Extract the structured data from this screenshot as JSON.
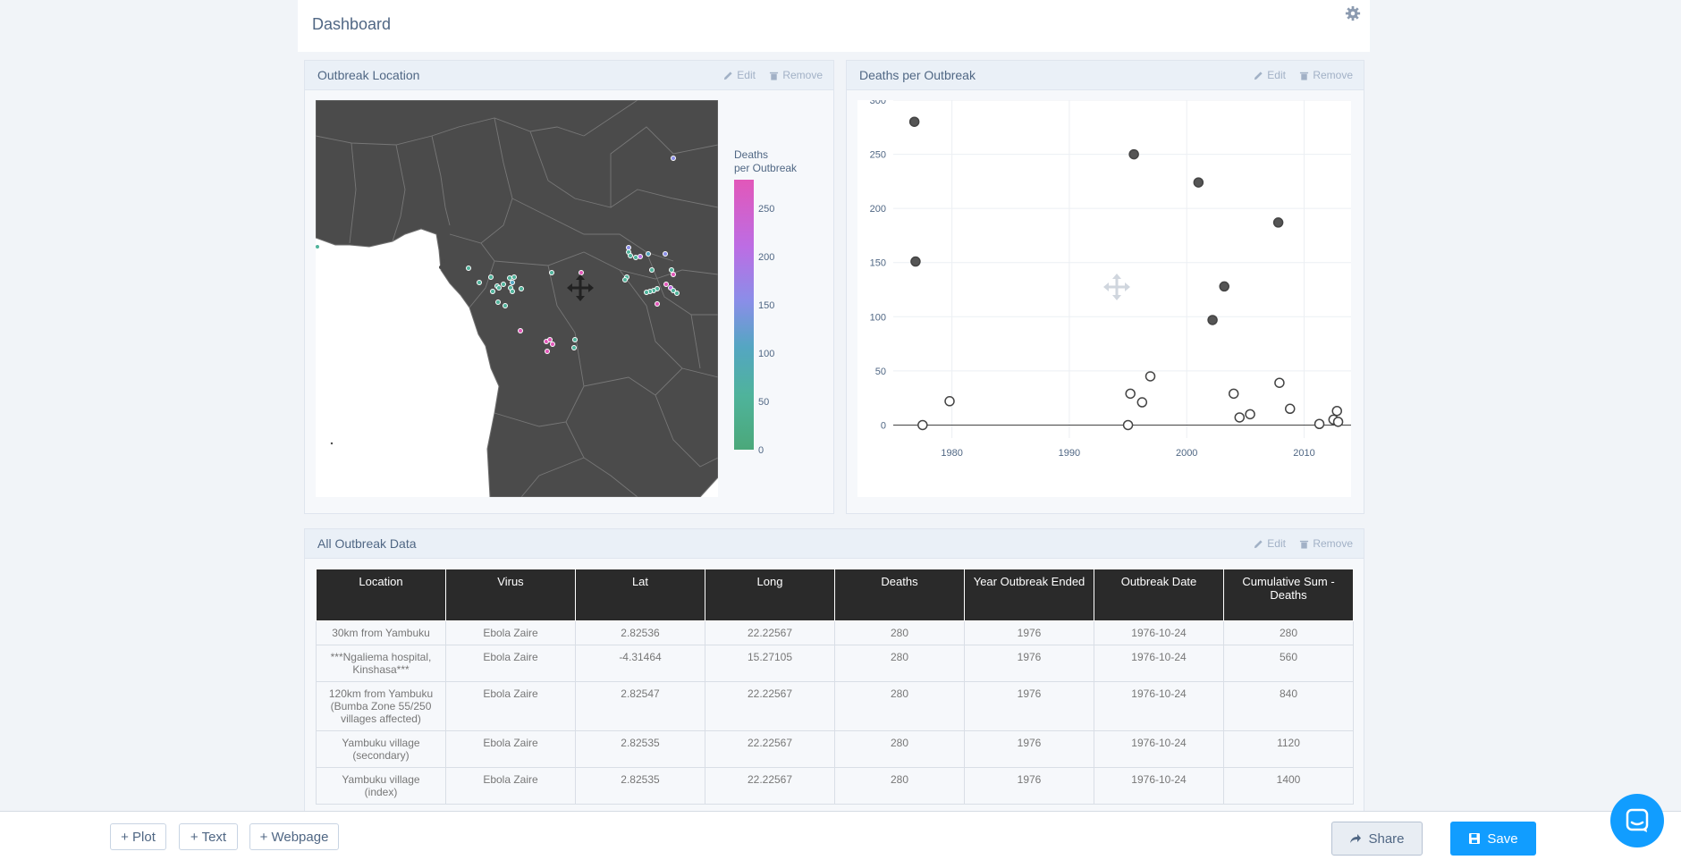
{
  "header": {
    "title": "Dashboard"
  },
  "panels": {
    "map": {
      "title": "Outbreak Location",
      "edit": "Edit",
      "remove": "Remove",
      "colorbar": {
        "title_line1": "Deaths",
        "title_line2": "per Outbreak",
        "ticks": [
          "250",
          "200",
          "150",
          "100",
          "50",
          "0"
        ]
      }
    },
    "scatter": {
      "title": "Deaths per Outbreak",
      "edit": "Edit",
      "remove": "Remove"
    },
    "table": {
      "title": "All Outbreak Data",
      "edit": "Edit",
      "remove": "Remove"
    }
  },
  "chart_data": {
    "type": "scatter",
    "title": "Deaths per Outbreak",
    "xlim": [
      1975,
      2014
    ],
    "ylim": [
      -12,
      300
    ],
    "x_ticks": [
      1980,
      1990,
      2000,
      2010
    ],
    "y_ticks": [
      0,
      50,
      100,
      150,
      200,
      250,
      300
    ],
    "points": [
      {
        "x": 1976.8,
        "y": 280,
        "filled": true
      },
      {
        "x": 1976.9,
        "y": 151,
        "filled": true
      },
      {
        "x": 1977.5,
        "y": 0,
        "filled": false
      },
      {
        "x": 1979.8,
        "y": 22,
        "filled": false
      },
      {
        "x": 1995.0,
        "y": 0,
        "filled": false
      },
      {
        "x": 1995.2,
        "y": 29,
        "filled": false
      },
      {
        "x": 1995.5,
        "y": 250,
        "filled": true
      },
      {
        "x": 1996.2,
        "y": 21,
        "filled": false
      },
      {
        "x": 1996.9,
        "y": 45,
        "filled": false
      },
      {
        "x": 2001.0,
        "y": 224,
        "filled": true
      },
      {
        "x": 2002.2,
        "y": 97,
        "filled": true
      },
      {
        "x": 2003.2,
        "y": 128,
        "filled": true
      },
      {
        "x": 2004.0,
        "y": 29,
        "filled": false
      },
      {
        "x": 2004.5,
        "y": 7,
        "filled": false
      },
      {
        "x": 2005.4,
        "y": 10,
        "filled": false
      },
      {
        "x": 2007.8,
        "y": 187,
        "filled": true
      },
      {
        "x": 2007.9,
        "y": 39,
        "filled": false
      },
      {
        "x": 2008.8,
        "y": 15,
        "filled": false
      },
      {
        "x": 2011.3,
        "y": 1,
        "filled": false
      },
      {
        "x": 2012.5,
        "y": 5,
        "filled": false
      },
      {
        "x": 2012.8,
        "y": 13,
        "filled": false
      },
      {
        "x": 2012.9,
        "y": 3,
        "filled": false
      }
    ]
  },
  "table": {
    "columns": [
      "Location",
      "Virus",
      "Lat",
      "Long",
      "Deaths",
      "Year Outbreak Ended",
      "Outbreak Date",
      "Cumulative Sum - Deaths"
    ],
    "rows": [
      [
        "30km from Yambuku",
        "Ebola Zaire",
        "2.82536",
        "22.22567",
        "280",
        "1976",
        "1976-10-24",
        "280"
      ],
      [
        "***Ngaliema hospital, Kinshasa***",
        "Ebola Zaire",
        "-4.31464",
        "15.27105",
        "280",
        "1976",
        "1976-10-24",
        "560"
      ],
      [
        "120km from Yambuku (Bumba Zone 55/250 villages affected)",
        "Ebola Zaire",
        "2.82547",
        "22.22567",
        "280",
        "1976",
        "1976-10-24",
        "840"
      ],
      [
        "Yambuku village (secondary)",
        "Ebola Zaire",
        "2.82535",
        "22.22567",
        "280",
        "1976",
        "1976-10-24",
        "1120"
      ],
      [
        "Yambuku village (index)",
        "Ebola Zaire",
        "2.82535",
        "22.22567",
        "280",
        "1976",
        "1976-10-24",
        "1400"
      ]
    ]
  },
  "footer": {
    "plot": "+ Plot",
    "text": "+ Text",
    "webpage": "+ Webpage",
    "share": "Share",
    "save": "Save"
  }
}
